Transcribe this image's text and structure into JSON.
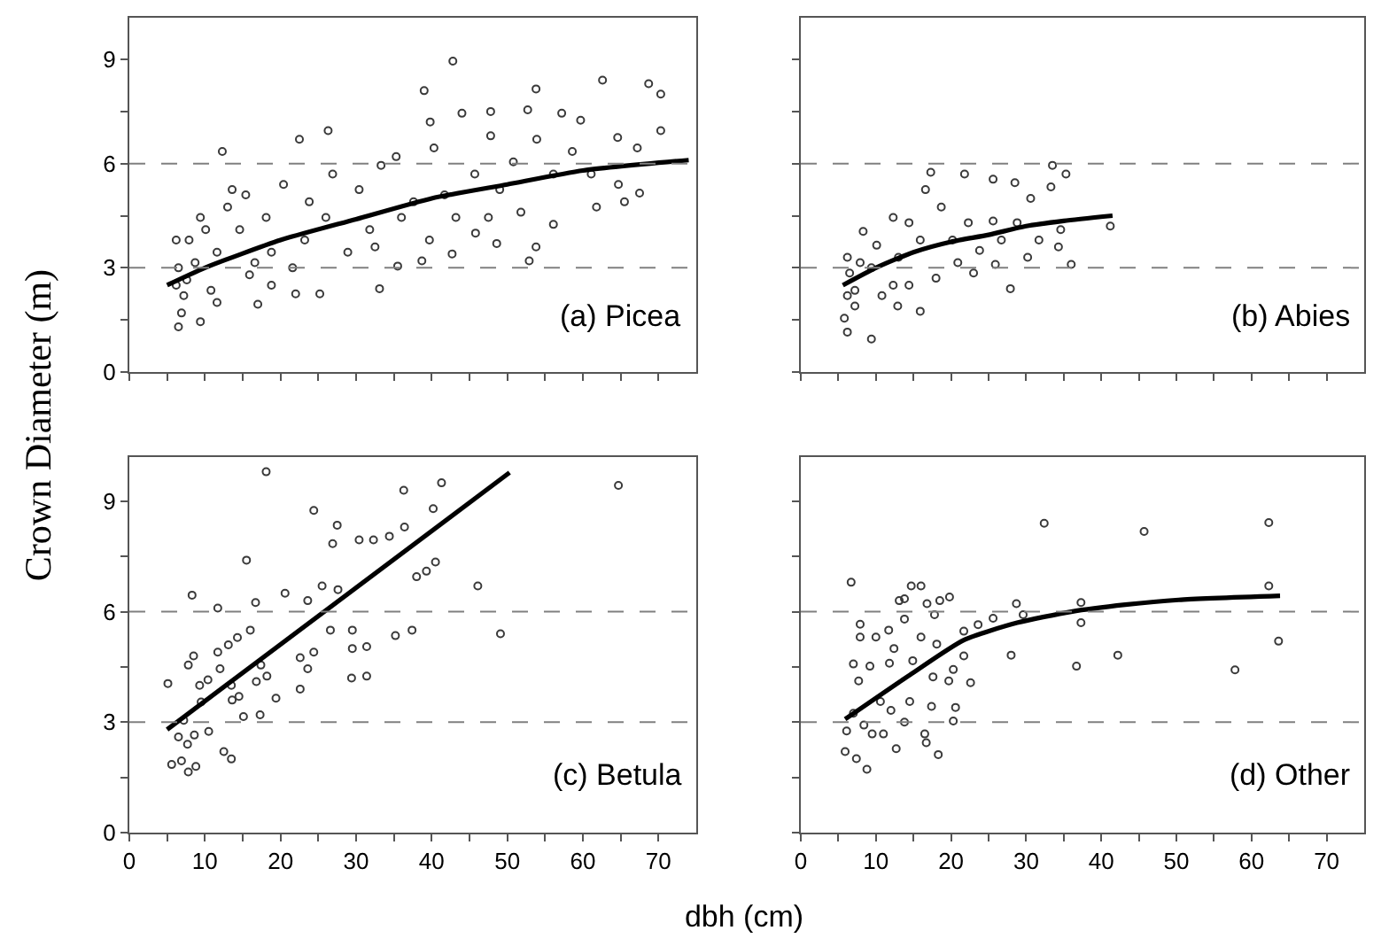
{
  "chart_data": [
    {
      "type": "scatter",
      "ylabel": "Crown Diameter (m)",
      "annotations": [
        "(a) Picea"
      ],
      "tick_labels": "y",
      "xlim": [
        0,
        75
      ],
      "ylim": [
        0,
        10.2
      ],
      "xticks": [
        {
          "value": 0,
          "label": null
        },
        {
          "value": 5,
          "label": null
        },
        {
          "value": 10,
          "label": null
        },
        {
          "value": 15,
          "label": null
        },
        {
          "value": 20,
          "label": null
        },
        {
          "value": 25,
          "label": null
        },
        {
          "value": 30,
          "label": null
        },
        {
          "value": 35,
          "label": null
        },
        {
          "value": 40,
          "label": null
        },
        {
          "value": 45,
          "label": null
        },
        {
          "value": 50,
          "label": null
        },
        {
          "value": 55,
          "label": null
        },
        {
          "value": 60,
          "label": null
        },
        {
          "value": 65,
          "label": null
        },
        {
          "value": 70,
          "label": null
        }
      ],
      "yticks": [
        0,
        {
          "value": 1.5,
          "label": null
        },
        3,
        {
          "value": 4.5,
          "label": null
        },
        6,
        {
          "value": 7.5,
          "label": null
        },
        9
      ],
      "ref_lines": [
        {
          "axis": "y",
          "value": 3,
          "color": "#808080",
          "line_style": "dashed"
        },
        {
          "axis": "y",
          "value": 6,
          "color": "#808080",
          "line_style": "dashed"
        }
      ],
      "series": [
        {
          "color": "#3a3a3a",
          "marker": "circle",
          "x": [
            42.8,
            39.0,
            53.8,
            62.6,
            68.7,
            70.3,
            39.8,
            44.0,
            47.8,
            52.7,
            57.2,
            59.7,
            64.6,
            70.3,
            26.3,
            22.5,
            12.3,
            33.3,
            35.3,
            40.3,
            47.8,
            53.9,
            58.6,
            67.2,
            67.5,
            65.5,
            61.8,
            56.1,
            53.8,
            52.9,
            48.6,
            45.8,
            42.7,
            38.7,
            35.5,
            33.1,
            25.2,
            22.0,
            17.0,
            11.6,
            6.5,
            9.4,
            37.6,
            30.4,
            26.9,
            20.4,
            15.4,
            13.6,
            10.1,
            7.9,
            6.5,
            7.2,
            6.9,
            10.8,
            15.9,
            18.8,
            23.2,
            28.9,
            31.8,
            36.0,
            43.2,
            47.5,
            51.8,
            56.1,
            61.1,
            64.7,
            45.7,
            41.7,
            26.0,
            23.8,
            18.1,
            14.6,
            11.6,
            8.7,
            7.6,
            6.2,
            6.2,
            9.4,
            13.0,
            16.6,
            21.6,
            18.8,
            32.5,
            39.7,
            49.0,
            50.8
          ],
          "values": [
            8.95,
            8.1,
            8.15,
            8.4,
            8.3,
            8.0,
            7.2,
            7.45,
            7.5,
            7.55,
            7.45,
            7.25,
            6.75,
            6.95,
            6.95,
            6.7,
            6.35,
            5.95,
            6.2,
            6.45,
            6.8,
            6.7,
            6.35,
            6.45,
            5.15,
            4.9,
            4.75,
            4.25,
            3.6,
            3.2,
            3.7,
            4.0,
            3.4,
            3.2,
            3.05,
            2.4,
            2.25,
            2.25,
            1.95,
            2.0,
            1.3,
            1.45,
            4.9,
            5.25,
            5.7,
            5.4,
            5.1,
            5.25,
            4.1,
            3.8,
            3.0,
            2.2,
            1.7,
            2.35,
            2.8,
            3.45,
            3.8,
            3.45,
            4.1,
            4.45,
            4.45,
            4.45,
            4.6,
            5.7,
            5.7,
            5.4,
            5.7,
            5.1,
            4.45,
            4.9,
            4.45,
            4.1,
            3.45,
            3.15,
            2.65,
            2.5,
            3.8,
            4.45,
            4.75,
            3.15,
            3.0,
            2.5,
            3.6,
            3.8,
            5.25,
            6.05
          ]
        },
        {
          "type": "line",
          "marker": "none",
          "color": "#000000",
          "x": [
            5,
            10,
            20,
            30,
            40,
            50,
            60,
            74
          ],
          "values": [
            2.5,
            3.0,
            3.8,
            4.4,
            5.0,
            5.4,
            5.8,
            6.1
          ]
        }
      ]
    },
    {
      "type": "scatter",
      "annotations": [
        "(b) Abies"
      ],
      "tick_labels": false,
      "xlim": [
        0,
        75
      ],
      "ylim": [
        0,
        10.2
      ],
      "xticks": [
        {
          "value": 0,
          "label": null
        },
        {
          "value": 5,
          "label": null
        },
        {
          "value": 10,
          "label": null
        },
        {
          "value": 15,
          "label": null
        },
        {
          "value": 20,
          "label": null
        },
        {
          "value": 25,
          "label": null
        },
        {
          "value": 30,
          "label": null
        },
        {
          "value": 35,
          "label": null
        },
        {
          "value": 40,
          "label": null
        },
        {
          "value": 45,
          "label": null
        },
        {
          "value": 50,
          "label": null
        },
        {
          "value": 55,
          "label": null
        },
        {
          "value": 60,
          "label": null
        },
        {
          "value": 65,
          "label": null
        },
        {
          "value": 70,
          "label": null
        }
      ],
      "yticks": [
        {
          "value": 0,
          "label": null
        },
        {
          "value": 1.5,
          "label": null
        },
        {
          "value": 3,
          "label": null
        },
        {
          "value": 4.5,
          "label": null
        },
        {
          "value": 6,
          "label": null
        },
        {
          "value": 7.5,
          "label": null
        },
        {
          "value": 9,
          "label": null
        }
      ],
      "ref_lines": [
        {
          "axis": "y",
          "value": 3,
          "color": "#808080",
          "line_style": "dashed"
        },
        {
          "axis": "y",
          "value": 6,
          "color": "#808080",
          "line_style": "dashed"
        }
      ],
      "series": [
        {
          "color": "#3a3a3a",
          "marker": "circle",
          "x": [
            17.3,
            21.8,
            25.6,
            28.5,
            33.5,
            35.3,
            33.3,
            30.6,
            41.2,
            34.3,
            36.0,
            27.9,
            30.2,
            25.9,
            23.0,
            15.9,
            9.4,
            6.2,
            5.8,
            7.2,
            10.8,
            12.9,
            14.4,
            18.0,
            20.9,
            23.8,
            26.7,
            28.8,
            25.6,
            22.3,
            18.7,
            16.6,
            12.3,
            8.3,
            10.1,
            6.2,
            6.5,
            9.4,
            13.0,
            15.9,
            12.3,
            7.2,
            6.2,
            7.9,
            14.4,
            20.2,
            31.7,
            34.6
          ],
          "values": [
            5.75,
            5.7,
            5.55,
            5.45,
            5.95,
            5.7,
            5.33,
            5.0,
            4.2,
            3.6,
            3.1,
            2.4,
            3.3,
            3.1,
            2.85,
            1.75,
            0.95,
            1.15,
            1.55,
            1.9,
            2.2,
            1.9,
            2.5,
            2.7,
            3.15,
            3.5,
            3.8,
            4.3,
            4.35,
            4.3,
            4.75,
            5.25,
            4.45,
            4.05,
            3.65,
            3.3,
            2.85,
            3.0,
            3.3,
            3.8,
            2.5,
            2.35,
            2.2,
            3.15,
            4.3,
            3.8,
            3.8,
            4.1
          ]
        },
        {
          "type": "line",
          "marker": "none",
          "color": "#000000",
          "x": [
            5.6,
            10,
            15,
            20,
            25,
            30,
            35,
            41.5
          ],
          "values": [
            2.5,
            3.0,
            3.45,
            3.75,
            3.95,
            4.2,
            4.35,
            4.5
          ]
        }
      ]
    },
    {
      "type": "scatter",
      "xlabel": "dbh (cm)",
      "annotations": [
        "(c) Betula"
      ],
      "xlim": [
        0,
        75
      ],
      "ylim": [
        0,
        10.2
      ],
      "xticks": [
        0,
        {
          "value": 5,
          "label": null
        },
        10,
        {
          "value": 15,
          "label": null
        },
        20,
        {
          "value": 25,
          "label": null
        },
        30,
        {
          "value": 35,
          "label": null
        },
        40,
        {
          "value": 45,
          "label": null
        },
        50,
        {
          "value": 55,
          "label": null
        },
        60,
        {
          "value": 65,
          "label": null
        },
        70
      ],
      "yticks": [
        0,
        {
          "value": 1.5,
          "label": null
        },
        3,
        {
          "value": 4.5,
          "label": null
        },
        6,
        {
          "value": 7.5,
          "label": null
        },
        9
      ],
      "ref_lines": [
        {
          "axis": "y",
          "value": 3,
          "color": "#808080",
          "line_style": "dashed"
        },
        {
          "axis": "y",
          "value": 6,
          "color": "#808080",
          "line_style": "dashed"
        }
      ],
      "series": [
        {
          "color": "#3a3a3a",
          "marker": "circle",
          "x": [
            18.1,
            24.4,
            27.5,
            36.3,
            41.3,
            64.7,
            40.2,
            30.4,
            32.3,
            34.4,
            36.4,
            26.9,
            15.5,
            40.5,
            39.3,
            38.0,
            46.1,
            27.6,
            25.5,
            23.6,
            20.6,
            16.7,
            8.3,
            11.7,
            49.1,
            37.4,
            35.2,
            29.5,
            26.6,
            31.4,
            29.5,
            31.4,
            29.4,
            23.6,
            24.4,
            22.6,
            22.6,
            19.4,
            17.3,
            15.1,
            13.6,
            10.5,
            12.5,
            13.5,
            8.8,
            7.8,
            6.9,
            5.6,
            5.1,
            7.8,
            8.5,
            11.7,
            13.1,
            14.3,
            16.0,
            17.4,
            18.2,
            9.3,
            10.4,
            9.5,
            7.2,
            6.5,
            7.7,
            8.6,
            12.0,
            13.5,
            14.5,
            16.8
          ],
          "values": [
            9.8,
            8.75,
            8.35,
            9.3,
            9.5,
            9.43,
            8.8,
            7.95,
            7.95,
            8.05,
            8.3,
            7.85,
            7.4,
            7.35,
            7.1,
            6.95,
            6.7,
            6.6,
            6.7,
            6.3,
            6.5,
            6.25,
            6.45,
            6.1,
            5.4,
            5.5,
            5.35,
            5.5,
            5.5,
            5.05,
            5.0,
            4.25,
            4.2,
            4.45,
            4.9,
            4.75,
            3.9,
            3.65,
            3.2,
            3.15,
            3.6,
            2.75,
            2.2,
            2.0,
            1.8,
            1.65,
            1.95,
            1.85,
            4.05,
            4.55,
            4.8,
            4.9,
            5.1,
            5.3,
            5.5,
            4.55,
            4.25,
            4.0,
            4.15,
            3.55,
            3.05,
            2.6,
            2.4,
            2.65,
            4.45,
            4.0,
            3.7,
            4.1
          ]
        },
        {
          "type": "line",
          "marker": "none",
          "color": "#000000",
          "x": [
            5.0,
            50.3
          ],
          "values": [
            2.8,
            9.78
          ]
        }
      ]
    },
    {
      "type": "scatter",
      "annotations": [
        "(d) Other"
      ],
      "tick_labels": "x",
      "xlim": [
        0,
        75
      ],
      "ylim": [
        0,
        10.2
      ],
      "xticks": [
        0,
        {
          "value": 5,
          "label": null
        },
        10,
        {
          "value": 15,
          "label": null
        },
        20,
        {
          "value": 25,
          "label": null
        },
        30,
        {
          "value": 35,
          "label": null
        },
        40,
        {
          "value": 45,
          "label": null
        },
        50,
        {
          "value": 55,
          "label": null
        },
        60,
        {
          "value": 65,
          "label": null
        },
        70
      ],
      "yticks": [
        {
          "value": 0,
          "label": null
        },
        {
          "value": 1.5,
          "label": null
        },
        {
          "value": 3,
          "label": null
        },
        {
          "value": 4.5,
          "label": null
        },
        {
          "value": 6,
          "label": null
        },
        {
          "value": 7.5,
          "label": null
        },
        {
          "value": 9,
          "label": null
        }
      ],
      "ref_lines": [
        {
          "axis": "y",
          "value": 3,
          "color": "#808080",
          "line_style": "dashed"
        },
        {
          "axis": "y",
          "value": 6,
          "color": "#808080",
          "line_style": "dashed"
        }
      ],
      "series": [
        {
          "color": "#3a3a3a",
          "marker": "circle",
          "x": [
            6.7,
            32.4,
            45.7,
            62.3,
            62.3,
            63.6,
            57.8,
            42.2,
            36.7,
            37.3,
            37.3,
            28.7,
            29.6,
            28.0,
            25.6,
            23.6,
            21.7,
            19.8,
            18.5,
            16.0,
            14.7,
            13.8,
            13.1,
            16.8,
            17.8,
            13.8,
            11.7,
            10.0,
            7.9,
            7.9,
            7.0,
            7.7,
            9.2,
            11.8,
            14.9,
            17.6,
            19.7,
            22.6,
            21.7,
            20.3,
            18.1,
            16.0,
            12.4,
            20.6,
            20.3,
            16.5,
            16.7,
            18.3,
            12.7,
            8.8,
            7.4,
            5.9,
            6.1,
            8.4,
            11.0,
            13.8,
            14.5,
            17.4,
            10.6,
            7.0,
            9.5,
            12.0
          ],
          "values": [
            6.8,
            8.4,
            8.18,
            8.42,
            6.7,
            5.2,
            4.42,
            4.82,
            4.52,
            5.7,
            6.25,
            6.22,
            5.92,
            4.82,
            5.82,
            5.65,
            5.47,
            6.4,
            6.3,
            6.7,
            6.7,
            6.35,
            6.3,
            6.22,
            5.92,
            5.8,
            5.5,
            5.31,
            5.66,
            5.31,
            4.58,
            4.12,
            4.52,
            4.6,
            4.67,
            4.23,
            4.12,
            4.07,
            4.8,
            4.43,
            5.12,
            5.31,
            5.0,
            3.4,
            3.03,
            2.68,
            2.44,
            2.12,
            2.28,
            1.72,
            2.01,
            2.2,
            2.76,
            2.92,
            2.68,
            3.0,
            3.56,
            3.43,
            3.56,
            3.24,
            2.68,
            3.32
          ]
        },
        {
          "type": "line",
          "marker": "none",
          "color": "#000000",
          "x": [
            5.9,
            14.5,
            21.7,
            28.8,
            36.0,
            43.2,
            50.3,
            63.8
          ],
          "values": [
            3.08,
            4.28,
            5.23,
            5.7,
            6.0,
            6.19,
            6.32,
            6.43
          ]
        }
      ]
    }
  ]
}
